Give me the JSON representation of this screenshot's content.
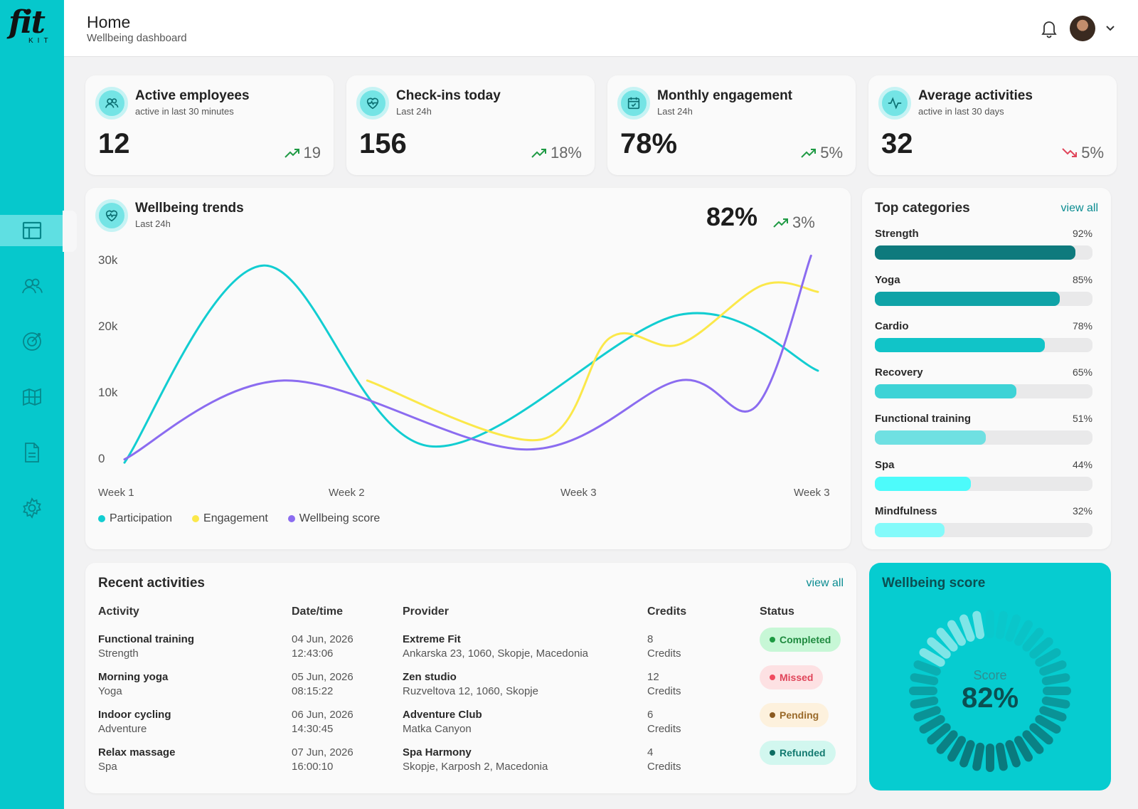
{
  "brand": {
    "logo_text": "fit",
    "logo_sub": "KIT"
  },
  "header": {
    "title": "Home",
    "subtitle": "Wellbeing dashboard"
  },
  "sidebar": {
    "items": [
      {
        "name": "dashboard",
        "icon": "layout-icon",
        "active": true
      },
      {
        "name": "people",
        "icon": "users-icon",
        "active": false
      },
      {
        "name": "goals",
        "icon": "target-icon",
        "active": false
      },
      {
        "name": "map",
        "icon": "map-icon",
        "active": false
      },
      {
        "name": "reports",
        "icon": "document-icon",
        "active": false
      },
      {
        "name": "settings",
        "icon": "gear-icon",
        "active": false
      }
    ]
  },
  "stats": [
    {
      "title": "Active employees",
      "subtitle": "active in last 30 minutes",
      "value": "12",
      "delta": "19",
      "trend": "up",
      "icon": "users-icon"
    },
    {
      "title": "Check-ins today",
      "subtitle": "Last 24h",
      "value": "156",
      "delta": "18%",
      "trend": "up",
      "icon": "heart-pulse-icon"
    },
    {
      "title": "Monthly engagement",
      "subtitle": "Last 24h",
      "value": "78%",
      "delta": "5%",
      "trend": "up",
      "icon": "calendar-check-icon"
    },
    {
      "title": "Average activities",
      "subtitle": "active in last 30 days",
      "value": "32",
      "delta": "5%",
      "trend": "down",
      "icon": "activity-icon"
    }
  ],
  "trends": {
    "title": "Wellbeing trends",
    "subtitle": "Last 24h",
    "big_value": "82%",
    "delta": "3%",
    "icon": "heart-pulse-icon"
  },
  "chart_data": {
    "type": "line",
    "yticks": [
      "30k",
      "20k",
      "10k",
      "0"
    ],
    "xticks": [
      "Week 1",
      "Week 2",
      "Week 3",
      "Week 3"
    ],
    "ylim": [
      0,
      30000
    ],
    "grid": false,
    "legend_position": "bottom-left",
    "series": [
      {
        "name": "Participation",
        "color": "#12cdd1",
        "points": [
          [
            0.0,
            -1000
          ],
          [
            0.2,
            29000
          ],
          [
            0.44,
            1500
          ],
          [
            0.8,
            21500
          ],
          [
            1.0,
            13000
          ]
        ]
      },
      {
        "name": "Engagement",
        "color": "#fbe84a",
        "points": [
          [
            0.35,
            11500
          ],
          [
            0.6,
            2500
          ],
          [
            0.7,
            18000
          ],
          [
            0.8,
            17000
          ],
          [
            0.92,
            26000
          ],
          [
            1.0,
            25000
          ]
        ]
      },
      {
        "name": "Wellbeing score",
        "color": "#8b6cf0",
        "points": [
          [
            0.0,
            -500
          ],
          [
            0.23,
            11500
          ],
          [
            0.58,
            1000
          ],
          [
            0.8,
            11500
          ],
          [
            0.91,
            7500
          ],
          [
            0.99,
            30500
          ]
        ]
      }
    ]
  },
  "categories": {
    "title": "Top categories",
    "view_all": "view all",
    "items": [
      {
        "name": "Strength",
        "value_label": "92%",
        "value": 92,
        "color": "#0e7a7d"
      },
      {
        "name": "Yoga",
        "value_label": "85%",
        "value": 85,
        "color": "#0fa3a7"
      },
      {
        "name": "Cardio",
        "value_label": "78%",
        "value": 78,
        "color": "#11c4c8"
      },
      {
        "name": "Recovery",
        "value_label": "65%",
        "value": 65,
        "color": "#3ed3d6"
      },
      {
        "name": "Functional training",
        "value_label": "51%",
        "value": 51,
        "color": "#6fe0e2"
      },
      {
        "name": "Spa",
        "value_label": "44%",
        "value": 44,
        "color": "#4dfbfb"
      },
      {
        "name": "Mindfulness",
        "value_label": "32%",
        "value": 32,
        "color": "#84fafa"
      }
    ]
  },
  "activities": {
    "title": "Recent activities",
    "view_all": "view all",
    "columns": [
      "Activity",
      "Date/time",
      "Provider",
      "Credits",
      "Status"
    ],
    "rows": [
      {
        "activity": "Functional training",
        "type": "Strength",
        "date": "04 Jun, 2026",
        "time": "12:43:06",
        "provider": "Extreme Fit",
        "address": "Ankarska 23, 1060, Skopje, Macedonia",
        "credits": "8",
        "credits_label": "Credits",
        "status": "Completed",
        "status_bg": "#c7f7d6",
        "status_fg": "#1f8a3f",
        "status_dot": "#1d9a42"
      },
      {
        "activity": "Morning yoga",
        "type": "Yoga",
        "date": "05 Jun, 2026",
        "time": "08:15:22",
        "provider": "Zen studio",
        "address": "Ruzveltova 12, 1060, Skopje",
        "credits": "12",
        "credits_label": "Credits",
        "status": "Missed",
        "status_bg": "#fde1e3",
        "status_fg": "#e0455a",
        "status_dot": "#f04b5f"
      },
      {
        "activity": "Indoor cycling",
        "type": "Adventure",
        "date": "06 Jun, 2026",
        "time": "14:30:45",
        "provider": "Adventure Club",
        "address": "Matka Canyon",
        "credits": "6",
        "credits_label": "Credits",
        "status": "Pending",
        "status_bg": "#fdf1dd",
        "status_fg": "#9a6a2a",
        "status_dot": "#8a5a22"
      },
      {
        "activity": "Relax massage",
        "type": "Spa",
        "date": "07 Jun, 2026",
        "time": "16:00:10",
        "provider": "Spa Harmony",
        "address": "Skopje, Karposh 2, Macedonia",
        "credits": "4",
        "credits_label": "Credits",
        "status": "Refunded",
        "status_bg": "#d2f7ef",
        "status_fg": "#137a70",
        "status_dot": "#0e6d63"
      }
    ]
  },
  "wellbeing_score": {
    "title": "Wellbeing score",
    "label": "Score",
    "value": "82%",
    "level": 0.82
  }
}
